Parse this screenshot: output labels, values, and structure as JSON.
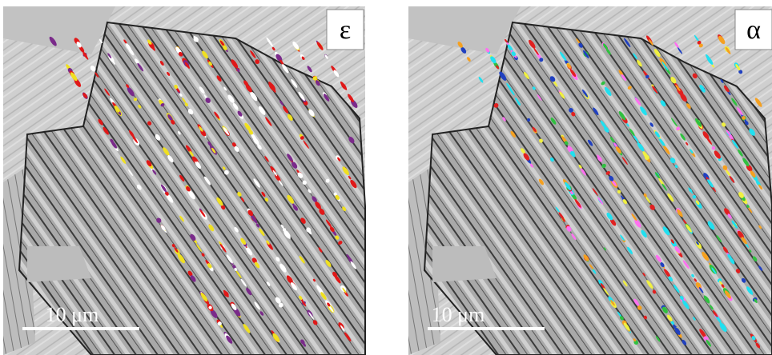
{
  "panels": [
    {
      "label": "ε",
      "scale_bar": "10 μm"
    },
    {
      "label": "α",
      "scale_bar": "10 μm"
    }
  ]
}
